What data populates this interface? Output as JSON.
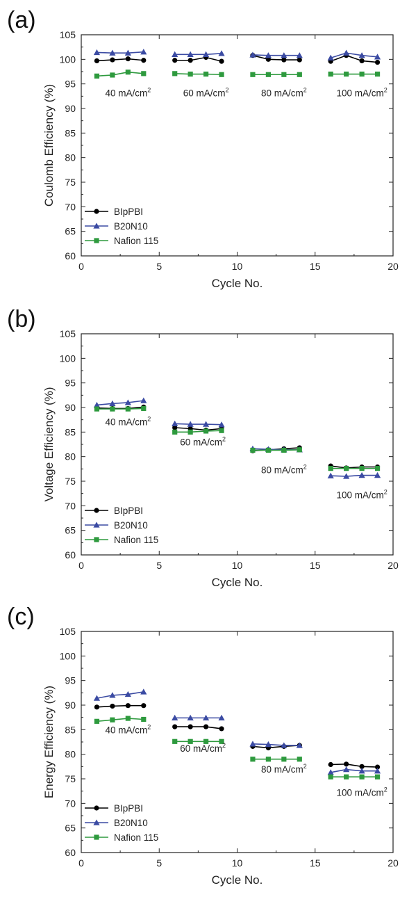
{
  "chart_data": [
    {
      "panel_label": "(a)",
      "type": "line",
      "xlabel": "Cycle No.",
      "ylabel": "Coulomb Efficiency (%)",
      "xlim": [
        0,
        20
      ],
      "ylim": [
        60,
        105
      ],
      "xticks": [
        0,
        5,
        10,
        15,
        20
      ],
      "yticks": [
        60,
        65,
        70,
        75,
        80,
        85,
        90,
        95,
        100,
        105
      ],
      "legend_position": "bottom-left",
      "annotations": [
        {
          "text": "40 mA/cm",
          "sup": "2",
          "x": 3.0,
          "y": 92.5
        },
        {
          "text": "60 mA/cm",
          "sup": "2",
          "x": 8.0,
          "y": 92.5
        },
        {
          "text": "80 mA/cm",
          "sup": "2",
          "x": 13.0,
          "y": 92.5
        },
        {
          "text": "100 mA/cm",
          "sup": "2",
          "x": 18.0,
          "y": 92.5
        }
      ],
      "series": [
        {
          "name": "BIpPBI",
          "color": "#000000",
          "marker": "circle",
          "segments": [
            {
              "x": [
                1,
                2,
                3,
                4
              ],
              "y": [
                99.7,
                99.9,
                100.1,
                99.8
              ]
            },
            {
              "x": [
                6,
                7,
                8,
                9
              ],
              "y": [
                99.8,
                99.8,
                100.4,
                99.6
              ]
            },
            {
              "x": [
                11,
                12,
                13,
                14
              ],
              "y": [
                100.8,
                100.0,
                99.9,
                99.9
              ]
            },
            {
              "x": [
                16,
                17,
                18,
                19
              ],
              "y": [
                99.6,
                100.8,
                99.7,
                99.4
              ]
            }
          ]
        },
        {
          "name": "B20N10",
          "color": "#3b4ba3",
          "marker": "triangle",
          "segments": [
            {
              "x": [
                1,
                2,
                3,
                4
              ],
              "y": [
                101.4,
                101.3,
                101.3,
                101.5
              ]
            },
            {
              "x": [
                6,
                7,
                8,
                9
              ],
              "y": [
                101.0,
                101.0,
                101.0,
                101.2
              ]
            },
            {
              "x": [
                11,
                12,
                13,
                14
              ],
              "y": [
                100.9,
                100.8,
                100.8,
                100.8
              ]
            },
            {
              "x": [
                16,
                17,
                18,
                19
              ],
              "y": [
                100.3,
                101.3,
                100.8,
                100.5
              ]
            }
          ]
        },
        {
          "name": "Nafion 115",
          "color": "#2e9a3e",
          "marker": "square",
          "segments": [
            {
              "x": [
                1,
                2,
                3,
                4
              ],
              "y": [
                96.6,
                96.8,
                97.4,
                97.1
              ]
            },
            {
              "x": [
                6,
                7,
                8,
                9
              ],
              "y": [
                97.1,
                97.0,
                97.0,
                96.9
              ]
            },
            {
              "x": [
                11,
                12,
                13,
                14
              ],
              "y": [
                96.9,
                96.9,
                96.9,
                96.9
              ]
            },
            {
              "x": [
                16,
                17,
                18,
                19
              ],
              "y": [
                97.0,
                97.0,
                97.0,
                97.0
              ]
            }
          ]
        }
      ]
    },
    {
      "panel_label": "(b)",
      "type": "line",
      "xlabel": "Cycle No.",
      "ylabel": "Voltage Efficiency (%)",
      "xlim": [
        0,
        20
      ],
      "ylim": [
        60,
        105
      ],
      "xticks": [
        0,
        5,
        10,
        15,
        20
      ],
      "yticks": [
        60,
        65,
        70,
        75,
        80,
        85,
        90,
        95,
        100,
        105
      ],
      "legend_position": "bottom-left",
      "annotations": [
        {
          "text": "40 mA/cm",
          "sup": "2",
          "x": 3.0,
          "y": 86.4
        },
        {
          "text": "60 mA/cm",
          "sup": "2",
          "x": 7.8,
          "y": 82.3
        },
        {
          "text": "80 mA/cm",
          "sup": "2",
          "x": 13.0,
          "y": 76.6
        },
        {
          "text": "100 mA/cm",
          "sup": "2",
          "x": 18.0,
          "y": 71.5
        }
      ],
      "series": [
        {
          "name": "BIpPBI",
          "color": "#000000",
          "marker": "circle",
          "segments": [
            {
              "x": [
                1,
                2,
                3,
                4
              ],
              "y": [
                89.9,
                89.8,
                89.8,
                90.1
              ]
            },
            {
              "x": [
                6,
                7,
                8,
                9
              ],
              "y": [
                85.9,
                85.7,
                85.4,
                85.7
              ]
            },
            {
              "x": [
                11,
                12,
                13,
                14
              ],
              "y": [
                81.2,
                81.4,
                81.6,
                81.8
              ]
            },
            {
              "x": [
                16,
                17,
                18,
                19
              ],
              "y": [
                78.1,
                77.7,
                77.9,
                77.9
              ]
            }
          ]
        },
        {
          "name": "B20N10",
          "color": "#3b4ba3",
          "marker": "triangle",
          "segments": [
            {
              "x": [
                1,
                2,
                3,
                4
              ],
              "y": [
                90.5,
                90.8,
                91.0,
                91.4
              ]
            },
            {
              "x": [
                6,
                7,
                8,
                9
              ],
              "y": [
                86.7,
                86.6,
                86.6,
                86.5
              ]
            },
            {
              "x": [
                11,
                12,
                13,
                14
              ],
              "y": [
                81.6,
                81.5,
                81.4,
                81.4
              ]
            },
            {
              "x": [
                16,
                17,
                18,
                19
              ],
              "y": [
                76.1,
                76.0,
                76.2,
                76.2
              ]
            }
          ]
        },
        {
          "name": "Nafion 115",
          "color": "#2e9a3e",
          "marker": "square",
          "segments": [
            {
              "x": [
                1,
                2,
                3,
                4
              ],
              "y": [
                89.7,
                89.7,
                89.7,
                89.8
              ]
            },
            {
              "x": [
                6,
                7,
                8,
                9
              ],
              "y": [
                85.0,
                85.0,
                85.2,
                85.3
              ]
            },
            {
              "x": [
                11,
                12,
                13,
                14
              ],
              "y": [
                81.3,
                81.3,
                81.3,
                81.4
              ]
            },
            {
              "x": [
                16,
                17,
                18,
                19
              ],
              "y": [
                77.6,
                77.6,
                77.6,
                77.6
              ]
            }
          ]
        }
      ]
    },
    {
      "panel_label": "(c)",
      "type": "line",
      "xlabel": "Cycle No.",
      "ylabel": "Energy Efficiency (%)",
      "xlim": [
        0,
        20
      ],
      "ylim": [
        60,
        105
      ],
      "xticks": [
        0,
        5,
        10,
        15,
        20
      ],
      "yticks": [
        60,
        65,
        70,
        75,
        80,
        85,
        90,
        95,
        100,
        105
      ],
      "legend_position": "bottom-left",
      "annotations": [
        {
          "text": "40 mA/cm",
          "sup": "2",
          "x": 3.0,
          "y": 84.3
        },
        {
          "text": "60 mA/cm",
          "sup": "2",
          "x": 7.8,
          "y": 80.5
        },
        {
          "text": "80 mA/cm",
          "sup": "2",
          "x": 13.0,
          "y": 76.3
        },
        {
          "text": "100 mA/cm",
          "sup": "2",
          "x": 18.0,
          "y": 71.5
        }
      ],
      "series": [
        {
          "name": "BIpPBI",
          "color": "#000000",
          "marker": "circle",
          "segments": [
            {
              "x": [
                1,
                2,
                3,
                4
              ],
              "y": [
                89.6,
                89.8,
                89.9,
                89.9
              ]
            },
            {
              "x": [
                6,
                7,
                8,
                9
              ],
              "y": [
                85.6,
                85.6,
                85.6,
                85.2
              ]
            },
            {
              "x": [
                11,
                12,
                13,
                14
              ],
              "y": [
                81.6,
                81.3,
                81.6,
                81.8
              ]
            },
            {
              "x": [
                16,
                17,
                18,
                19
              ],
              "y": [
                77.9,
                78.0,
                77.5,
                77.4
              ]
            }
          ]
        },
        {
          "name": "B20N10",
          "color": "#3b4ba3",
          "marker": "triangle",
          "segments": [
            {
              "x": [
                1,
                2,
                3,
                4
              ],
              "y": [
                91.4,
                92.0,
                92.2,
                92.7
              ]
            },
            {
              "x": [
                6,
                7,
                8,
                9
              ],
              "y": [
                87.4,
                87.4,
                87.4,
                87.4
              ]
            },
            {
              "x": [
                11,
                12,
                13,
                14
              ],
              "y": [
                82.1,
                82.0,
                81.8,
                81.8
              ]
            },
            {
              "x": [
                16,
                17,
                18,
                19
              ],
              "y": [
                76.3,
                76.9,
                76.6,
                76.6
              ]
            }
          ]
        },
        {
          "name": "Nafion 115",
          "color": "#2e9a3e",
          "marker": "square",
          "segments": [
            {
              "x": [
                1,
                2,
                3,
                4
              ],
              "y": [
                86.7,
                87.0,
                87.3,
                87.1
              ]
            },
            {
              "x": [
                6,
                7,
                8,
                9
              ],
              "y": [
                82.6,
                82.6,
                82.6,
                82.6
              ]
            },
            {
              "x": [
                11,
                12,
                13,
                14
              ],
              "y": [
                79.0,
                79.0,
                79.0,
                79.0
              ]
            },
            {
              "x": [
                16,
                17,
                18,
                19
              ],
              "y": [
                75.4,
                75.4,
                75.4,
                75.4
              ]
            }
          ]
        }
      ]
    }
  ]
}
